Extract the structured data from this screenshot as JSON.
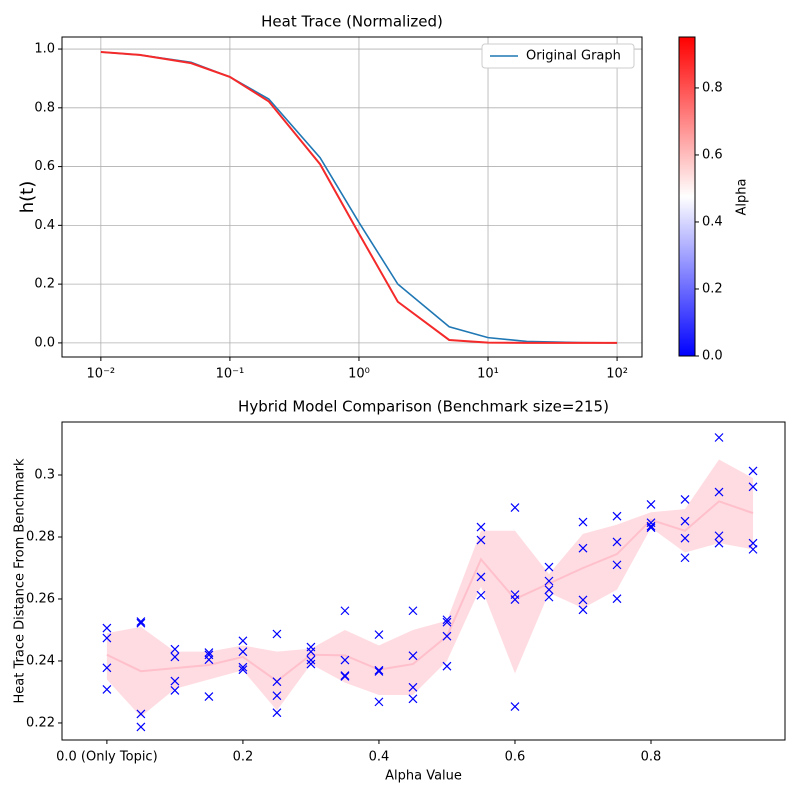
{
  "chart_data": [
    {
      "type": "line",
      "title": "Heat Trace (Normalized)",
      "y_label": "h(t)",
      "log_x": true,
      "grid": true,
      "legend": "upper right",
      "x": [
        0.01,
        0.02,
        0.05,
        0.1,
        0.2,
        0.5,
        1,
        2,
        5,
        10,
        20,
        50,
        100
      ],
      "series": [
        {
          "name": "Original Graph",
          "color": "#1f77b4",
          "values": [
            0.99,
            0.98,
            0.955,
            0.905,
            0.83,
            0.63,
            0.41,
            0.2,
            0.055,
            0.018,
            0.005,
            0.001,
            0.0
          ]
        },
        {
          "color": "#f42a2a",
          "values": [
            0.99,
            0.98,
            0.952,
            0.905,
            0.822,
            0.608,
            0.372,
            0.14,
            0.01,
            0.001,
            0.0,
            0.0,
            0.0
          ]
        }
      ],
      "xlim": [
        0.005,
        156
      ],
      "xticks": [
        {
          "value": 0.01,
          "label": "10⁻²"
        },
        {
          "value": 0.1,
          "label": "10⁻¹"
        },
        {
          "value": 1,
          "label": "10⁰"
        },
        {
          "value": 10,
          "label": "10¹"
        },
        {
          "value": 100,
          "label": "10²"
        }
      ],
      "ylim": [
        -0.048,
        1.041
      ],
      "yticks": [
        {
          "value": 0,
          "label": "0.0"
        },
        {
          "value": 0.2,
          "label": "0.2"
        },
        {
          "value": 0.4,
          "label": "0.4"
        },
        {
          "value": 0.6,
          "label": "0.6"
        },
        {
          "value": 0.8,
          "label": "0.8"
        },
        {
          "value": 1,
          "label": "1.0"
        }
      ],
      "colorbar": {
        "label": "Alpha",
        "lim": [
          0,
          0.952
        ],
        "colors": [
          "#0000ff",
          "#ffffff",
          "#ff0000"
        ],
        "ticks": [
          {
            "value": 0,
            "label": "0.0"
          },
          0.2,
          0.4,
          0.6,
          0.8
        ]
      }
    },
    {
      "type": "scatter",
      "title": "Hybrid Model Comparison (Benchmark size=215)",
      "x_label": "Alpha Value",
      "y_label": "Heat Trace Distance From Benchmark",
      "x": [
        0,
        0.05,
        0.1,
        0.15,
        0.2,
        0.25,
        0.3,
        0.35,
        0.4,
        0.45,
        0.5,
        0.55,
        0.6,
        0.65,
        0.7,
        0.75,
        0.8,
        0.85,
        0.9,
        0.95
      ],
      "points": [
        [
          0.2506,
          0.2474,
          0.2378,
          0.2308
        ],
        [
          0.2527,
          0.2522,
          0.2229,
          0.2187
        ],
        [
          0.2438,
          0.2413,
          0.2335,
          0.2305
        ],
        [
          0.2427,
          0.242,
          0.2404,
          0.2285
        ],
        [
          0.2465,
          0.243,
          0.238,
          0.2372
        ],
        [
          0.2487,
          0.2333,
          0.2288,
          0.2233
        ],
        [
          0.2445,
          0.243,
          0.2403,
          0.239
        ],
        [
          0.2562,
          0.2403,
          0.2353,
          0.235
        ],
        [
          0.2485,
          0.237,
          0.2366,
          0.2268
        ],
        [
          0.2562,
          0.2417,
          0.2315,
          0.2278
        ],
        [
          0.2533,
          0.2525,
          0.248,
          0.2383
        ],
        [
          0.2832,
          0.279,
          0.2671,
          0.2612
        ],
        [
          0.2895,
          0.2614,
          0.2598,
          0.2253
        ],
        [
          0.2703,
          0.2658,
          0.263,
          0.2606
        ],
        [
          0.2848,
          0.2764,
          0.2597,
          0.2565
        ],
        [
          0.2867,
          0.2784,
          0.271,
          0.2601
        ],
        [
          0.2905,
          0.2846,
          0.2835,
          0.283
        ],
        [
          0.2921,
          0.2851,
          0.2796,
          0.2733
        ],
        [
          0.3121,
          0.2945,
          0.2804,
          0.278
        ],
        [
          0.3013,
          0.2962,
          0.278,
          0.276
        ]
      ],
      "point_color": "#0000ff",
      "mean": [
        0.242,
        0.2367,
        0.2377,
        0.2387,
        0.2413,
        0.2335,
        0.242,
        0.2418,
        0.2372,
        0.239,
        0.248,
        0.2728,
        0.26,
        0.265,
        0.27,
        0.2745,
        0.2855,
        0.282,
        0.2915,
        0.2877
      ],
      "band_lower": [
        0.234,
        0.222,
        0.231,
        0.234,
        0.237,
        0.224,
        0.239,
        0.233,
        0.229,
        0.229,
        0.24,
        0.264,
        0.236,
        0.262,
        0.257,
        0.263,
        0.283,
        0.275,
        0.278,
        0.276
      ],
      "band_upper": [
        0.249,
        0.251,
        0.243,
        0.243,
        0.245,
        0.243,
        0.244,
        0.25,
        0.245,
        0.25,
        0.253,
        0.282,
        0.282,
        0.268,
        0.281,
        0.284,
        0.288,
        0.289,
        0.305,
        0.299
      ],
      "line_color": "#ffc0cb",
      "xlim": [
        -0.066,
        0.997
      ],
      "xticks": [
        {
          "value": 0,
          "label": "0.0 (Only Topic)"
        },
        0.2,
        0.4,
        0.6,
        0.8
      ],
      "ylim": [
        0.2145,
        0.3171
      ],
      "yticks": [
        0.22,
        0.24,
        0.26,
        0.28,
        0.3
      ]
    }
  ]
}
